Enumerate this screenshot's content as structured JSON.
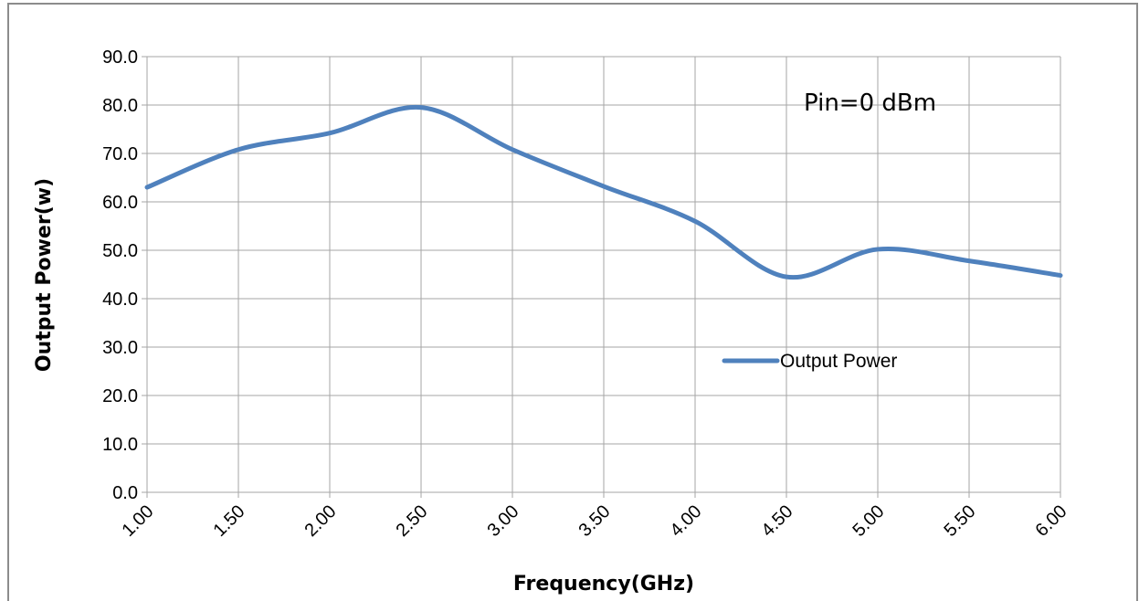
{
  "chart_data": {
    "type": "line",
    "title": "",
    "xlabel": "Frequency(GHz)",
    "ylabel": "Output Power(w)",
    "x": [
      1.0,
      1.5,
      2.0,
      2.5,
      3.0,
      3.5,
      4.0,
      4.5,
      5.0,
      5.5,
      6.0
    ],
    "x_tick_labels": [
      "1.00",
      "1.50",
      "2.00",
      "2.50",
      "3.00",
      "3.50",
      "4.00",
      "4.50",
      "5.00",
      "5.50",
      "6.00"
    ],
    "y_tick_labels": [
      "0.0",
      "10.0",
      "20.0",
      "30.0",
      "40.0",
      "50.0",
      "60.0",
      "70.0",
      "80.0",
      "90.0"
    ],
    "xlim": [
      1.0,
      6.0
    ],
    "ylim": [
      0,
      90
    ],
    "grid": true,
    "legend_position": "center-right",
    "annotation": "Pin=0 dBm",
    "series": [
      {
        "name": "Output Power",
        "color": "#4f81bd",
        "values": [
          63.0,
          70.8,
          74.2,
          79.5,
          70.8,
          63.2,
          56.0,
          44.5,
          50.2,
          47.8,
          44.8
        ]
      }
    ]
  }
}
